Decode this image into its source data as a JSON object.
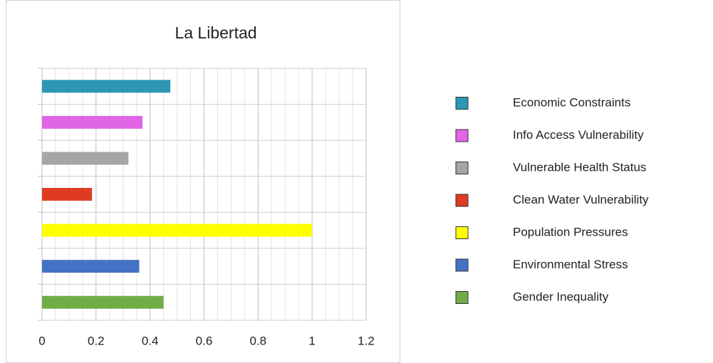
{
  "chart_data": {
    "type": "bar",
    "orientation": "horizontal",
    "title": "La Libertad",
    "categories": [
      "Economic Constraints",
      "Info Access Vulnerability",
      "Vulnerable Health Status",
      "Clean Water Vulnerability",
      "Population Pressures",
      "Environmental Stress",
      "Gender Inequality"
    ],
    "values": [
      0.475,
      0.372,
      0.32,
      0.185,
      1.0,
      0.36,
      0.45
    ],
    "colors": [
      "#2e97b5",
      "#e066e6",
      "#a6a6a6",
      "#e03c22",
      "#ffff00",
      "#4472c4",
      "#70ad47"
    ],
    "xlim": [
      0,
      1.2
    ],
    "xticks": [
      0,
      0.2,
      0.4,
      0.6,
      0.8,
      1,
      1.2
    ],
    "grid": true,
    "legend": "right"
  }
}
